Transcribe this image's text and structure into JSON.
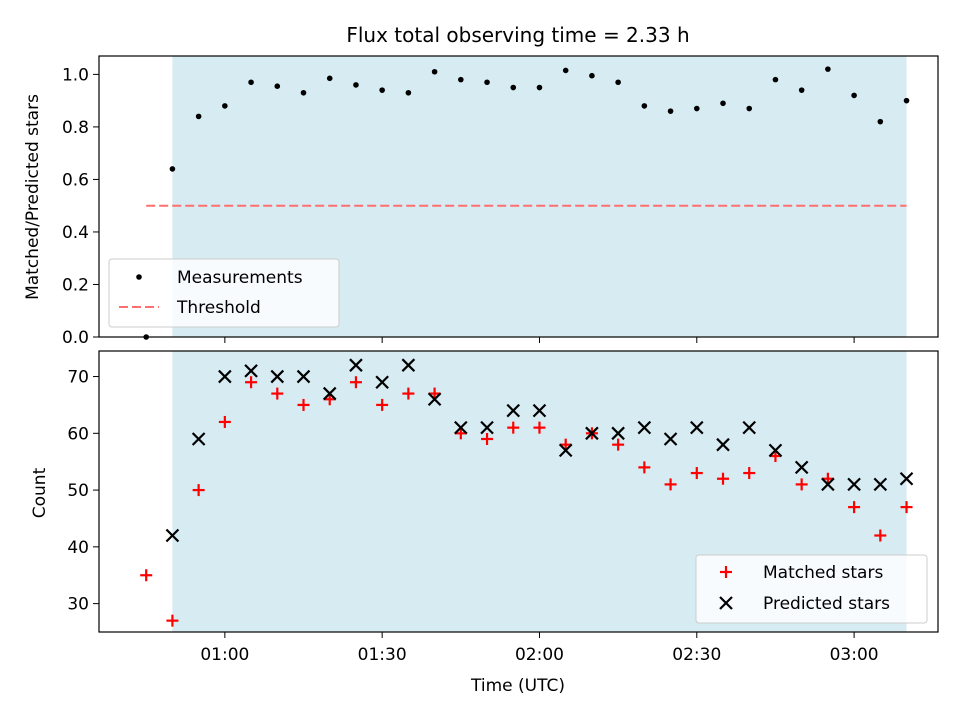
{
  "title": "Flux total observing time = 2.33 h",
  "colors": {
    "observing_span": "#add8e6",
    "measurements": "#000000",
    "threshold": "#ff6f6f",
    "matched": "#ff0000",
    "predicted": "#000000"
  },
  "chart_data": [
    {
      "type": "scatter",
      "title": "Flux total observing time = 2.33 h",
      "xlabel": "",
      "ylabel": "Matched/Predicted stars",
      "ylim": [
        0,
        1.07
      ],
      "yticks": [
        0.0,
        0.2,
        0.4,
        0.6,
        0.8,
        1.0
      ],
      "ytick_labels": [
        "0.0",
        "0.2",
        "0.4",
        "0.6",
        "0.8",
        "1.0"
      ],
      "xlim": [
        "00:36",
        "03:16"
      ],
      "observing_span": [
        "00:50",
        "03:10"
      ],
      "legend": {
        "position": "lower-left",
        "entries": [
          "Measurements",
          "Threshold"
        ]
      },
      "threshold": {
        "name": "Threshold",
        "value": 0.5,
        "x_start": "00:45",
        "x_end": "03:10"
      },
      "series": [
        {
          "name": "Measurements",
          "marker": "dot",
          "x": [
            "00:45",
            "00:50",
            "00:55",
            "01:00",
            "01:05",
            "01:10",
            "01:15",
            "01:20",
            "01:25",
            "01:30",
            "01:35",
            "01:40",
            "01:45",
            "01:50",
            "01:55",
            "02:00",
            "02:05",
            "02:10",
            "02:15",
            "02:20",
            "02:25",
            "02:30",
            "02:35",
            "02:40",
            "02:45",
            "02:50",
            "02:55",
            "03:00",
            "03:05",
            "03:10"
          ],
          "y": [
            0.0,
            0.64,
            0.84,
            0.88,
            0.97,
            0.955,
            0.93,
            0.985,
            0.96,
            0.94,
            0.93,
            1.01,
            0.98,
            0.97,
            0.95,
            0.95,
            1.015,
            0.995,
            0.97,
            0.88,
            0.86,
            0.87,
            0.89,
            0.87,
            0.98,
            0.94,
            1.02,
            0.92,
            0.82,
            0.9
          ]
        }
      ]
    },
    {
      "type": "scatter",
      "xlabel": "Time (UTC)",
      "ylabel": "Count",
      "ylim": [
        25,
        74.5
      ],
      "yticks": [
        30,
        40,
        50,
        60,
        70
      ],
      "ytick_labels": [
        "30",
        "40",
        "50",
        "60",
        "70"
      ],
      "xlim": [
        "00:36",
        "03:16"
      ],
      "xticks": [
        "01:00",
        "01:30",
        "02:00",
        "02:30",
        "03:00"
      ],
      "xtick_labels": [
        "01:00",
        "01:30",
        "02:00",
        "02:30",
        "03:00"
      ],
      "observing_span": [
        "00:50",
        "03:10"
      ],
      "legend": {
        "position": "lower-right",
        "entries": [
          "Matched stars",
          "Predicted stars"
        ]
      },
      "x": [
        "00:45",
        "00:50",
        "00:55",
        "01:00",
        "01:05",
        "01:10",
        "01:15",
        "01:20",
        "01:25",
        "01:30",
        "01:35",
        "01:40",
        "01:45",
        "01:50",
        "01:55",
        "02:00",
        "02:05",
        "02:10",
        "02:15",
        "02:20",
        "02:25",
        "02:30",
        "02:35",
        "02:40",
        "02:45",
        "02:50",
        "02:55",
        "03:00",
        "03:05",
        "03:10"
      ],
      "series": [
        {
          "name": "Matched stars",
          "marker": "plus",
          "values": [
            35,
            27,
            50,
            62,
            69,
            67,
            65,
            66,
            69,
            65,
            67,
            67,
            60,
            59,
            61,
            61,
            58,
            60,
            58,
            54,
            51,
            53,
            52,
            53,
            56,
            51,
            52,
            47,
            42,
            47
          ]
        },
        {
          "name": "Predicted stars",
          "marker": "x",
          "values": [
            null,
            42,
            59,
            70,
            71,
            70,
            70,
            67,
            72,
            69,
            72,
            66,
            61,
            61,
            64,
            64,
            57,
            60,
            60,
            61,
            59,
            61,
            58,
            61,
            57,
            54,
            51,
            51,
            51,
            52
          ]
        }
      ]
    }
  ]
}
